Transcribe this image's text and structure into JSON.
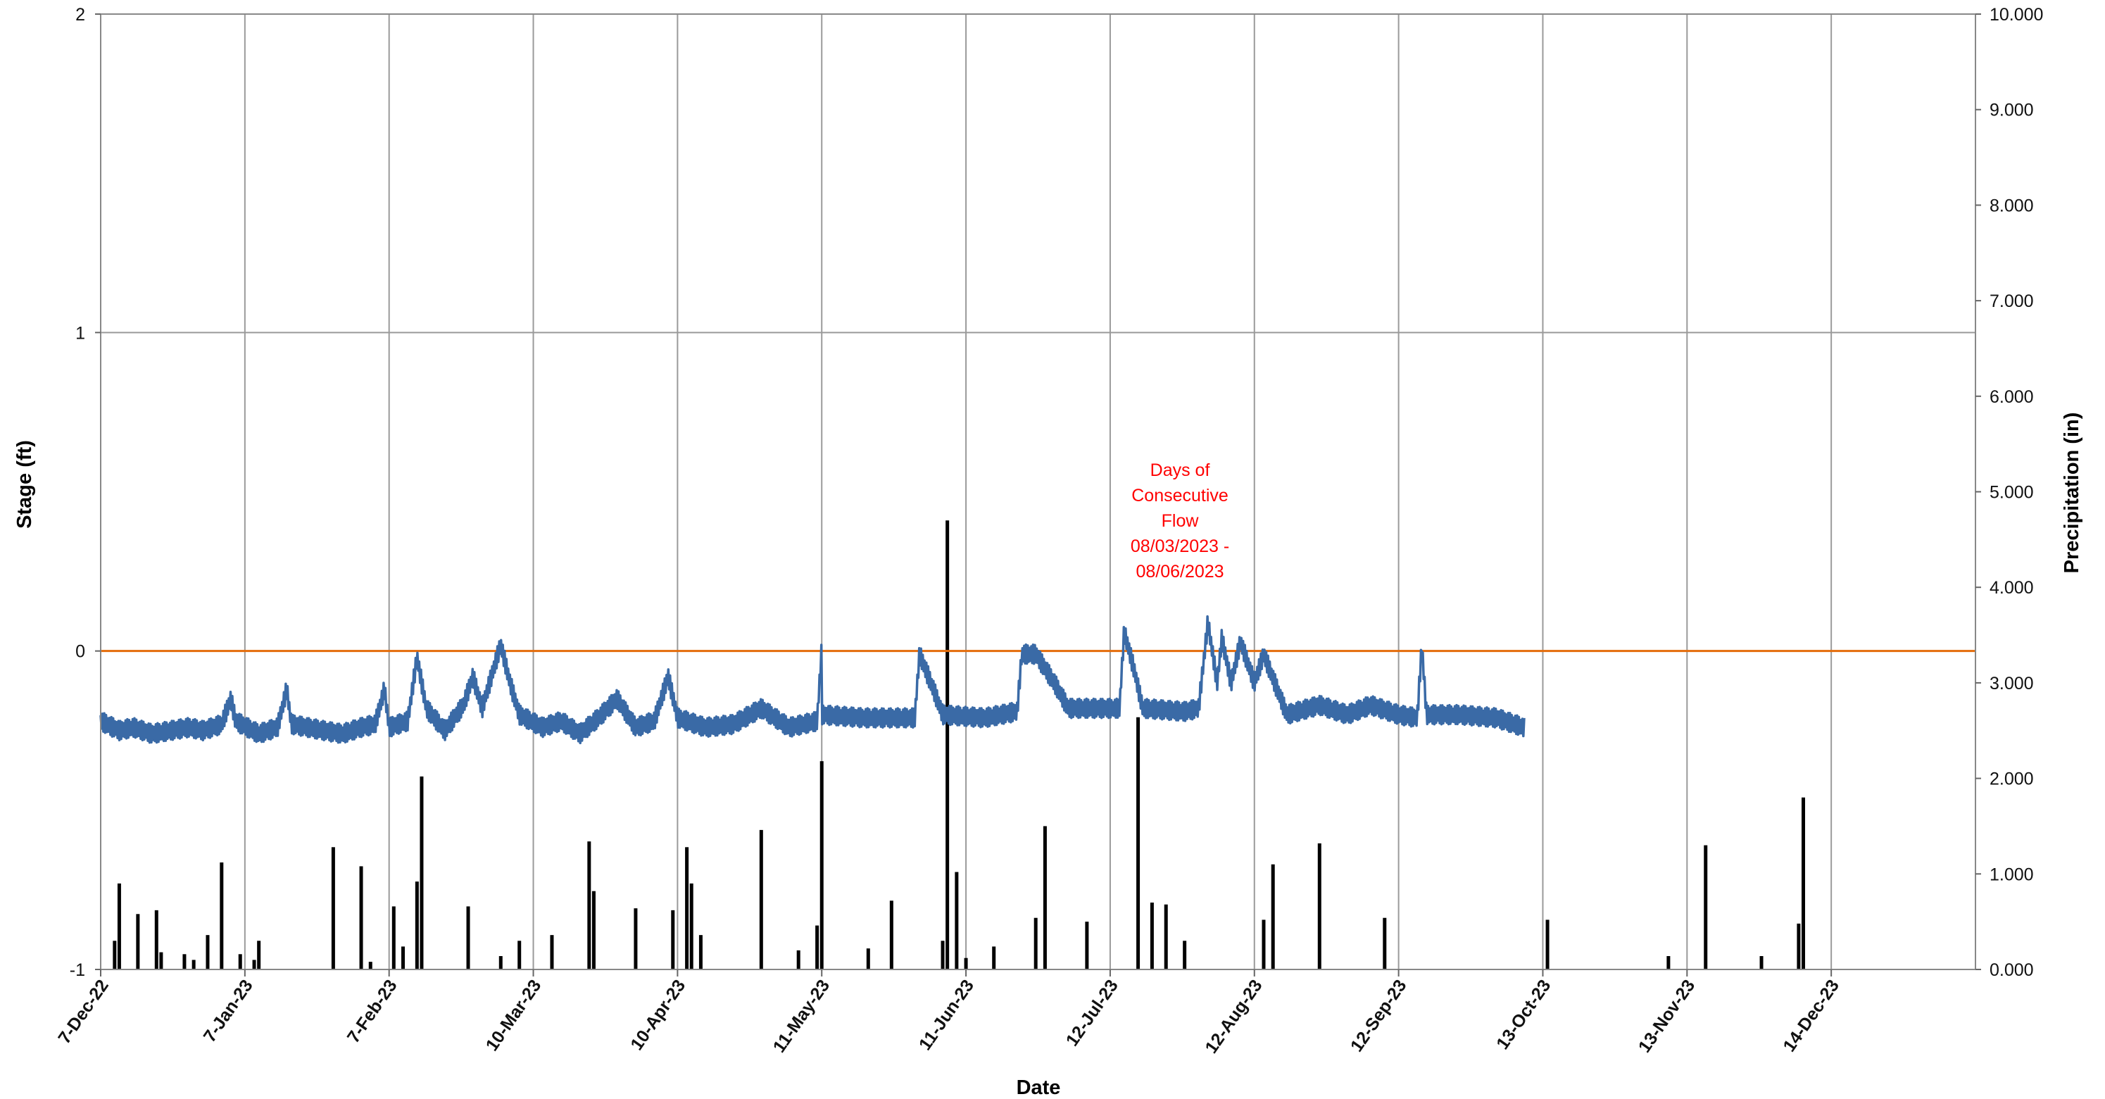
{
  "chart_data": {
    "type": "line+bar",
    "ylabel": "Stage (ft)",
    "y2label": "Precipitation (in)",
    "xlabel": "Date",
    "ylim": [
      -1,
      2
    ],
    "y_ticks": [
      "2",
      "1",
      "0",
      "-1"
    ],
    "y2lim": [
      0,
      10
    ],
    "y2_ticks": [
      "10.000",
      "9.000",
      "8.000",
      "7.000",
      "6.000",
      "5.000",
      "4.000",
      "3.000",
      "2.000",
      "1.000",
      "0.000"
    ],
    "x_range": [
      "2022-12-07",
      "2024-01-14"
    ],
    "x_ticks": [
      {
        "date": "2022-12-07",
        "label": "7-Dec-22"
      },
      {
        "date": "2023-01-07",
        "label": "7-Jan-23"
      },
      {
        "date": "2023-02-07",
        "label": "7-Feb-23"
      },
      {
        "date": "2023-03-10",
        "label": "10-Mar-23"
      },
      {
        "date": "2023-04-10",
        "label": "10-Apr-23"
      },
      {
        "date": "2023-05-11",
        "label": "11-May-23"
      },
      {
        "date": "2023-06-11",
        "label": "11-Jun-23"
      },
      {
        "date": "2023-07-12",
        "label": "12-Jul-23"
      },
      {
        "date": "2023-08-12",
        "label": "12-Aug-23"
      },
      {
        "date": "2023-09-12",
        "label": "12-Sep-23"
      },
      {
        "date": "2023-10-13",
        "label": "13-Oct-23"
      },
      {
        "date": "2023-11-13",
        "label": "13-Nov-23"
      },
      {
        "date": "2023-12-14",
        "label": "14-Dec-23"
      }
    ],
    "grid": true,
    "threshold": {
      "value": 0,
      "color": "#E46C0A"
    },
    "annotation": {
      "lines": [
        "Days of",
        "Consecutive",
        "Flow",
        "08/03/2023 -",
        "08/06/2023"
      ],
      "color": "#FF0000",
      "date": "2023-07-27",
      "stage": 0.55
    },
    "stage_series": {
      "color": "#3A6AA6",
      "points": [
        [
          "2022-12-07",
          -0.22
        ],
        [
          "2022-12-11",
          -0.25
        ],
        [
          "2022-12-14",
          -0.24
        ],
        [
          "2022-12-18",
          -0.26
        ],
        [
          "2022-12-22",
          -0.25
        ],
        [
          "2022-12-26",
          -0.24
        ],
        [
          "2022-12-29",
          -0.25
        ],
        [
          "2023-01-02",
          -0.23
        ],
        [
          "2023-01-04",
          -0.15
        ],
        [
          "2023-01-05",
          -0.22
        ],
        [
          "2023-01-10",
          -0.26
        ],
        [
          "2023-01-14",
          -0.24
        ],
        [
          "2023-01-16",
          -0.12
        ],
        [
          "2023-01-17",
          -0.23
        ],
        [
          "2023-01-24",
          -0.25
        ],
        [
          "2023-01-28",
          -0.26
        ],
        [
          "2023-02-01",
          -0.24
        ],
        [
          "2023-02-04",
          -0.23
        ],
        [
          "2023-02-06",
          -0.12
        ],
        [
          "2023-02-07",
          -0.24
        ],
        [
          "2023-02-11",
          -0.22
        ],
        [
          "2023-02-13",
          -0.02
        ],
        [
          "2023-02-15",
          -0.18
        ],
        [
          "2023-02-19",
          -0.25
        ],
        [
          "2023-02-23",
          -0.17
        ],
        [
          "2023-02-25",
          -0.08
        ],
        [
          "2023-02-27",
          -0.18
        ],
        [
          "2023-03-01",
          -0.08
        ],
        [
          "2023-03-03",
          0.02
        ],
        [
          "2023-03-05",
          -0.1
        ],
        [
          "2023-03-07",
          -0.2
        ],
        [
          "2023-03-12",
          -0.24
        ],
        [
          "2023-03-16",
          -0.22
        ],
        [
          "2023-03-20",
          -0.26
        ],
        [
          "2023-03-24",
          -0.21
        ],
        [
          "2023-03-28",
          -0.15
        ],
        [
          "2023-04-01",
          -0.24
        ],
        [
          "2023-04-05",
          -0.22
        ],
        [
          "2023-04-08",
          -0.08
        ],
        [
          "2023-04-10",
          -0.21
        ],
        [
          "2023-04-16",
          -0.24
        ],
        [
          "2023-04-22",
          -0.23
        ],
        [
          "2023-04-28",
          -0.18
        ],
        [
          "2023-05-04",
          -0.24
        ],
        [
          "2023-05-10",
          -0.22
        ],
        [
          "2023-05-11",
          0.01
        ],
        [
          "2023-05-11",
          -0.2
        ],
        [
          "2023-05-20",
          -0.21
        ],
        [
          "2023-05-28",
          -0.21
        ],
        [
          "2023-05-31",
          -0.21
        ],
        [
          "2023-06-01",
          -0.01
        ],
        [
          "2023-06-04",
          -0.12
        ],
        [
          "2023-06-06",
          -0.2
        ],
        [
          "2023-06-15",
          -0.21
        ],
        [
          "2023-06-22",
          -0.19
        ],
        [
          "2023-06-23",
          -0.01
        ],
        [
          "2023-06-26",
          -0.01
        ],
        [
          "2023-06-30",
          -0.1
        ],
        [
          "2023-07-03",
          -0.18
        ],
        [
          "2023-07-12",
          -0.18
        ],
        [
          "2023-07-14",
          -0.18
        ],
        [
          "2023-07-15",
          0.06
        ],
        [
          "2023-07-17",
          -0.05
        ],
        [
          "2023-07-19",
          -0.18
        ],
        [
          "2023-07-28",
          -0.19
        ],
        [
          "2023-07-31",
          -0.18
        ],
        [
          "2023-08-02",
          0.09
        ],
        [
          "2023-08-04",
          -0.1
        ],
        [
          "2023-08-05",
          0.04
        ],
        [
          "2023-08-07",
          -0.1
        ],
        [
          "2023-08-09",
          0.03
        ],
        [
          "2023-08-12",
          -0.1
        ],
        [
          "2023-08-14",
          -0.01
        ],
        [
          "2023-08-19",
          -0.2
        ],
        [
          "2023-08-26",
          -0.17
        ],
        [
          "2023-09-01",
          -0.2
        ],
        [
          "2023-09-06",
          -0.17
        ],
        [
          "2023-09-12",
          -0.2
        ],
        [
          "2023-09-16",
          -0.21
        ],
        [
          "2023-09-17",
          0.02
        ],
        [
          "2023-09-18",
          -0.2
        ],
        [
          "2023-09-25",
          -0.2
        ],
        [
          "2023-10-03",
          -0.21
        ],
        [
          "2023-10-09",
          -0.24
        ]
      ]
    },
    "precip_series": {
      "color": "#000000",
      "bars": [
        [
          "2022-12-10",
          0.3
        ],
        [
          "2022-12-11",
          0.9
        ],
        [
          "2022-12-15",
          0.58
        ],
        [
          "2022-12-19",
          0.62
        ],
        [
          "2022-12-20",
          0.18
        ],
        [
          "2022-12-25",
          0.16
        ],
        [
          "2022-12-27",
          0.1
        ],
        [
          "2022-12-30",
          0.36
        ],
        [
          "2023-01-02",
          1.12
        ],
        [
          "2023-01-06",
          0.16
        ],
        [
          "2023-01-09",
          0.1
        ],
        [
          "2023-01-10",
          0.3
        ],
        [
          "2023-01-26",
          1.28
        ],
        [
          "2023-02-01",
          1.08
        ],
        [
          "2023-02-03",
          0.08
        ],
        [
          "2023-02-08",
          0.66
        ],
        [
          "2023-02-10",
          0.24
        ],
        [
          "2023-02-13",
          0.92
        ],
        [
          "2023-02-14",
          2.02
        ],
        [
          "2023-02-24",
          0.66
        ],
        [
          "2023-03-03",
          0.14
        ],
        [
          "2023-03-07",
          0.3
        ],
        [
          "2023-03-14",
          0.36
        ],
        [
          "2023-03-22",
          1.34
        ],
        [
          "2023-03-23",
          0.82
        ],
        [
          "2023-04-01",
          0.64
        ],
        [
          "2023-04-09",
          0.62
        ],
        [
          "2023-04-12",
          1.28
        ],
        [
          "2023-04-13",
          0.9
        ],
        [
          "2023-04-15",
          0.36
        ],
        [
          "2023-04-28",
          1.46
        ],
        [
          "2023-05-06",
          0.2
        ],
        [
          "2023-05-10",
          0.46
        ],
        [
          "2023-05-11",
          2.18
        ],
        [
          "2023-05-21",
          0.22
        ],
        [
          "2023-05-26",
          0.72
        ],
        [
          "2023-06-06",
          0.3
        ],
        [
          "2023-06-07",
          4.7
        ],
        [
          "2023-06-09",
          1.02
        ],
        [
          "2023-06-11",
          0.12
        ],
        [
          "2023-06-17",
          0.24
        ],
        [
          "2023-06-26",
          0.54
        ],
        [
          "2023-06-28",
          1.5
        ],
        [
          "2023-07-07",
          0.5
        ],
        [
          "2023-07-18",
          2.64
        ],
        [
          "2023-07-21",
          0.7
        ],
        [
          "2023-07-24",
          0.68
        ],
        [
          "2023-07-28",
          0.3
        ],
        [
          "2023-08-14",
          0.52
        ],
        [
          "2023-08-16",
          1.1
        ],
        [
          "2023-08-26",
          1.32
        ],
        [
          "2023-09-09",
          0.54
        ],
        [
          "2023-10-14",
          0.52
        ],
        [
          "2023-11-09",
          0.14
        ],
        [
          "2023-11-17",
          1.3
        ],
        [
          "2023-11-29",
          0.14
        ],
        [
          "2023-12-07",
          0.48
        ],
        [
          "2023-12-08",
          1.8
        ]
      ]
    }
  }
}
